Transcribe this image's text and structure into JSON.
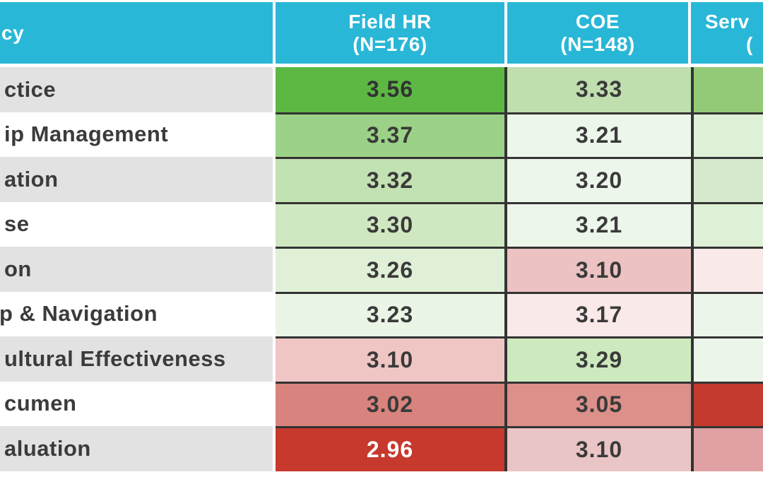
{
  "header": {
    "competency_label": "cy",
    "columns": [
      {
        "line1": "Field HR",
        "line2": "(N=176)"
      },
      {
        "line1": "COE",
        "line2": "(N=148)"
      },
      {
        "line1": "Serv",
        "line2": "("
      }
    ],
    "header_bg": "#29b7d7",
    "header_text_color": "#ffffff"
  },
  "rows": [
    {
      "label": "ctice",
      "cells": [
        {
          "value": "3.56",
          "bg": "#5cb843",
          "fg": "#333333"
        },
        {
          "value": "3.33",
          "bg": "#bfdfae",
          "fg": "#3a3a3a"
        },
        {
          "value": "",
          "bg": "#93ca77",
          "fg": "#3a3a3a"
        }
      ]
    },
    {
      "label": "ip Management",
      "cells": [
        {
          "value": "3.37",
          "bg": "#9cd287",
          "fg": "#3a3a3a"
        },
        {
          "value": "3.21",
          "bg": "#edf6ea",
          "fg": "#3a3a3a"
        },
        {
          "value": "",
          "bg": "#def0d6",
          "fg": "#3a3a3a"
        }
      ]
    },
    {
      "label": "ation",
      "cells": [
        {
          "value": "3.32",
          "bg": "#c3e2b3",
          "fg": "#3a3a3a"
        },
        {
          "value": "3.20",
          "bg": "#edf6ea",
          "fg": "#3a3a3a"
        },
        {
          "value": "",
          "bg": "#d6e9cd",
          "fg": "#3a3a3a"
        }
      ]
    },
    {
      "label": "se",
      "cells": [
        {
          "value": "3.30",
          "bg": "#cfe8c1",
          "fg": "#3a3a3a"
        },
        {
          "value": "3.21",
          "bg": "#edf6ea",
          "fg": "#3a3a3a"
        },
        {
          "value": "",
          "bg": "#def0d6",
          "fg": "#3a3a3a"
        }
      ]
    },
    {
      "label": "on",
      "cells": [
        {
          "value": "3.26",
          "bg": "#dff0d6",
          "fg": "#3a3a3a"
        },
        {
          "value": "3.10",
          "bg": "#edc2c2",
          "fg": "#3a3a3a"
        },
        {
          "value": "",
          "bg": "#f9e9e9",
          "fg": "#3a3a3a"
        }
      ]
    },
    {
      "label": "p & Navigation",
      "cells": [
        {
          "value": "3.23",
          "bg": "#eaf5e6",
          "fg": "#3a3a3a"
        },
        {
          "value": "3.17",
          "bg": "#f9e9e9",
          "fg": "#3a3a3a"
        },
        {
          "value": "",
          "bg": "#ecf5e9",
          "fg": "#3a3a3a"
        }
      ]
    },
    {
      "label": "ultural Effectiveness",
      "cells": [
        {
          "value": "3.10",
          "bg": "#efc6c4",
          "fg": "#3a3a3a"
        },
        {
          "value": "3.29",
          "bg": "#cdeabf",
          "fg": "#3a3a3a"
        },
        {
          "value": "",
          "bg": "#ecf5e9",
          "fg": "#3a3a3a"
        }
      ]
    },
    {
      "label": "cumen",
      "cells": [
        {
          "value": "3.02",
          "bg": "#d8837d",
          "fg": "#3a3a3a"
        },
        {
          "value": "3.05",
          "bg": "#db9089",
          "fg": "#3a3a3a"
        },
        {
          "value": "",
          "bg": "#c43a2e",
          "fg": "#ffffff"
        }
      ]
    },
    {
      "label": "aluation",
      "cells": [
        {
          "value": "2.96",
          "bg": "#c7392d",
          "fg": "#ffffff"
        },
        {
          "value": "3.10",
          "bg": "#eac5c5",
          "fg": "#3a3a3a"
        },
        {
          "value": "",
          "bg": "#dfa1a3",
          "fg": "#3a3a3a"
        }
      ]
    }
  ],
  "style_tokens": {
    "row_label_alt_bg": "#e2e2e2",
    "grid_border_color": "#333333",
    "label_text_color": "#3b3b3b"
  },
  "chart_data": {
    "type": "heatmap",
    "note": "Table heatmap of mean scores; left row labels, first header cell and fourth column are cropped by the image edges. Fourth-column numeric values are not visible, only cell colors.",
    "row_labels_visible": [
      "ctice",
      "ip Management",
      "ation",
      "se",
      "on",
      "p & Navigation",
      "ultural Effectiveness",
      "cumen",
      "aluation"
    ],
    "series": [
      {
        "name": "Field HR (N=176)",
        "values": [
          3.56,
          3.37,
          3.32,
          3.3,
          3.26,
          3.23,
          3.1,
          3.02,
          2.96
        ]
      },
      {
        "name": "COE (N=148)",
        "values": [
          3.33,
          3.21,
          3.2,
          3.21,
          3.1,
          3.17,
          3.29,
          3.05,
          3.1
        ]
      },
      {
        "name": "Serv( [truncated]",
        "values": [
          null,
          null,
          null,
          null,
          null,
          null,
          null,
          null,
          null
        ]
      }
    ],
    "color_encoding": "green = higher score, red = lower score",
    "legend_position": "none",
    "grid": "black cell borders between value cells"
  }
}
